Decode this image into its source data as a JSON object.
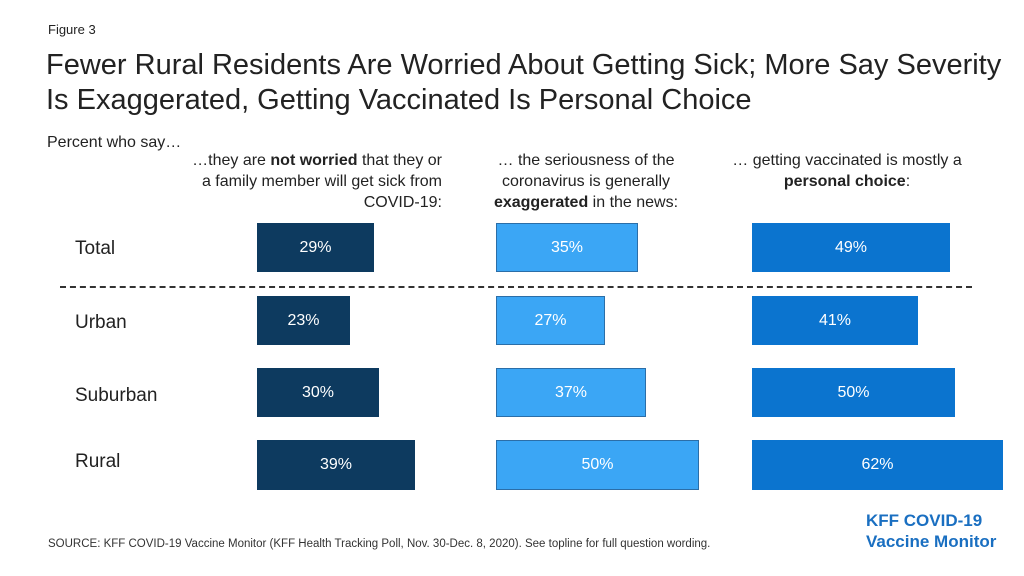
{
  "figure_label": "Figure 3",
  "chart_data": {
    "type": "bar",
    "orientation": "horizontal",
    "title": "Fewer Rural Residents Are Worried About Getting Sick; More Say Severity Is Exaggerated, Getting Vaccinated Is Personal Choice",
    "subtitle": "Percent who say…",
    "categories": [
      "Total",
      "Urban",
      "Suburban",
      "Rural"
    ],
    "panels": [
      {
        "header": [
          {
            "text": "…they are ",
            "bold": false
          },
          {
            "text": "not worried",
            "bold": true
          },
          {
            "text": " that they or a family member will get sick from COVID-19:",
            "bold": false
          }
        ],
        "color": "#0d3a5f",
        "values": [
          29,
          23,
          30,
          39
        ]
      },
      {
        "header": [
          {
            "text": "… the seriousness of the coronavirus is generally ",
            "bold": false
          },
          {
            "text": "exaggerated",
            "bold": true
          },
          {
            "text": " in the news:",
            "bold": false
          }
        ],
        "color": "#3ba6f5",
        "values": [
          35,
          27,
          37,
          50
        ]
      },
      {
        "header": [
          {
            "text": "… getting vaccinated is mostly a ",
            "bold": false
          },
          {
            "text": "personal choice",
            "bold": true
          },
          {
            "text": ":",
            "bold": false
          }
        ],
        "color": "#0b74cf",
        "values": [
          49,
          41,
          50,
          62
        ]
      }
    ],
    "value_suffix": "%",
    "grid": false,
    "legend": "none"
  },
  "source": "SOURCE: KFF COVID-19 Vaccine Monitor (KFF Health Tracking Poll, Nov. 30-Dec. 8, 2020). See topline for full question wording.",
  "logo": {
    "line1": "KFF COVID-19",
    "line2": "Vaccine Monitor",
    "color": "#1a6fc1"
  }
}
